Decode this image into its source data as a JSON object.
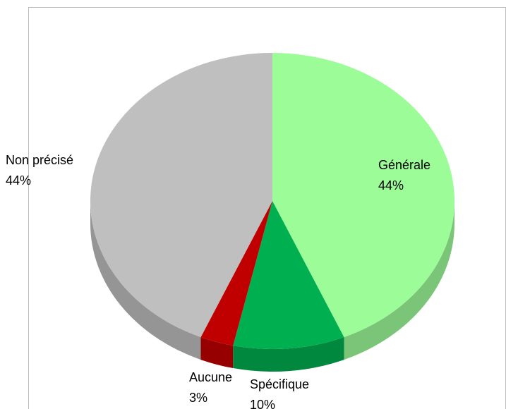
{
  "chart_data": {
    "type": "pie3d",
    "categories": [
      "Générale",
      "Spécifique",
      "Aucune",
      "Non précisé"
    ],
    "values": [
      44,
      10,
      3,
      44
    ],
    "value_labels": [
      "44%",
      "10%",
      "3%",
      "44%"
    ],
    "colors": [
      "#9cfc98",
      "#00b050",
      "#c00000",
      "#bfbfbf"
    ]
  }
}
